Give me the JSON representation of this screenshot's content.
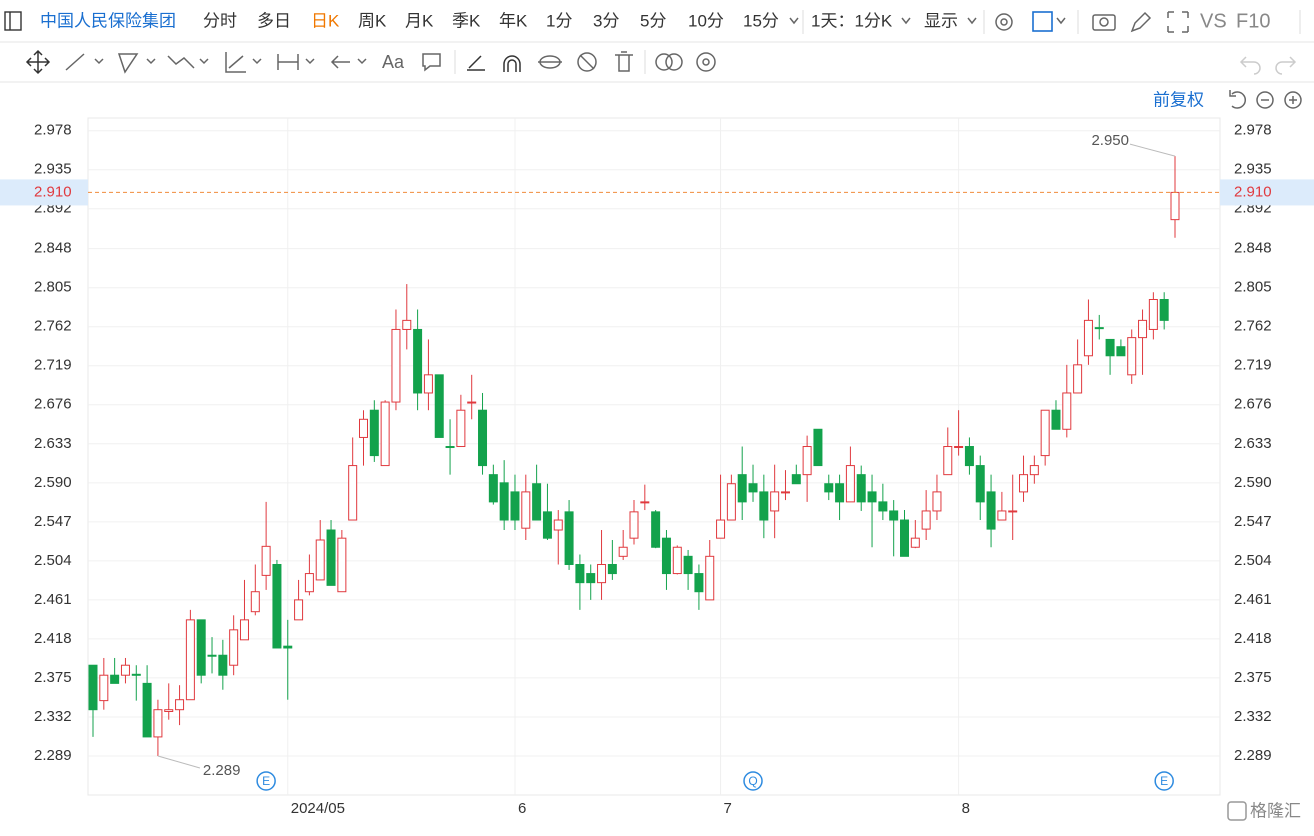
{
  "toolbar": {
    "stock_name": "中国人民保险集团",
    "periods": [
      "分时",
      "多日",
      "日K",
      "周K",
      "月K",
      "季K",
      "年K",
      "1分",
      "3分",
      "5分",
      "10分",
      "15分"
    ],
    "period_setting": "1天：1分K",
    "display": "显示",
    "vs": "VS",
    "f10": "F10",
    "text_tool": "Aa",
    "adjust": "前复权",
    "watermark": "格隆汇"
  },
  "chart_data": {
    "type": "candlestick",
    "categories": [
      null,
      null,
      null,
      null,
      null,
      null,
      null,
      null,
      null,
      null,
      null,
      null,
      null,
      null,
      null,
      null,
      null,
      null,
      "2024/05",
      null,
      null,
      null,
      null,
      null,
      null,
      null,
      null,
      null,
      null,
      null,
      null,
      null,
      null,
      null,
      null,
      null,
      null,
      null,
      null,
      "6",
      null,
      null,
      null,
      null,
      null,
      null,
      null,
      null,
      null,
      null,
      null,
      null,
      null,
      null,
      null,
      null,
      null,
      null,
      "7",
      null,
      null,
      null,
      null,
      null,
      null,
      null,
      null,
      null,
      null,
      null,
      null,
      null,
      null,
      null,
      null,
      null,
      null,
      null,
      null,
      null,
      "8",
      null,
      null,
      null,
      null,
      null,
      null,
      null,
      null,
      null,
      null,
      null,
      null,
      null,
      null,
      null,
      null,
      null,
      null,
      null,
      null
    ],
    "open": [
      2.389,
      2.35,
      2.378,
      2.378,
      2.379,
      2.369,
      2.31,
      2.338,
      2.34,
      2.351,
      2.439,
      2.4,
      2.4,
      2.389,
      2.417,
      2.448,
      2.488,
      2.5,
      2.41,
      2.439,
      2.47,
      2.483,
      2.538,
      2.47,
      2.549,
      2.64,
      2.67,
      2.609,
      2.679,
      2.759,
      2.759,
      2.689,
      2.709,
      2.63,
      2.63,
      2.678,
      2.67,
      2.599,
      2.59,
      2.58,
      2.54,
      2.589,
      2.558,
      2.538,
      2.558,
      2.5,
      2.49,
      2.48,
      2.5,
      2.509,
      2.529,
      2.568,
      2.558,
      2.529,
      2.49,
      2.509,
      2.49,
      2.461,
      2.529,
      2.549,
      2.599,
      2.589,
      2.58,
      2.559,
      2.579,
      2.599,
      2.599,
      2.649,
      2.589,
      2.589,
      2.569,
      2.599,
      2.58,
      2.569,
      2.559,
      2.549,
      2.519,
      2.539,
      2.559,
      2.599,
      2.629,
      2.63,
      2.609,
      2.58,
      2.549,
      2.558,
      2.58,
      2.599,
      2.62,
      2.67,
      2.649,
      2.689,
      2.73,
      2.761,
      2.748,
      2.74,
      2.709,
      2.75,
      2.759,
      2.792,
      2.88
    ],
    "high": [
      2.389,
      2.397,
      2.397,
      2.397,
      2.389,
      2.389,
      2.351,
      2.369,
      2.367,
      2.45,
      2.439,
      2.42,
      2.417,
      2.444,
      2.483,
      2.5,
      2.569,
      2.505,
      2.439,
      2.483,
      2.511,
      2.549,
      2.549,
      2.538,
      2.64,
      2.67,
      2.681,
      2.681,
      2.781,
      2.809,
      2.781,
      2.748,
      2.709,
      2.66,
      2.687,
      2.709,
      2.689,
      2.61,
      2.615,
      2.599,
      2.599,
      2.61,
      2.589,
      2.56,
      2.571,
      2.511,
      2.5,
      2.538,
      2.527,
      2.538,
      2.571,
      2.588,
      2.56,
      2.538,
      2.521,
      2.516,
      2.5,
      2.527,
      2.599,
      2.599,
      2.63,
      2.61,
      2.599,
      2.61,
      2.604,
      2.61,
      2.642,
      2.649,
      2.599,
      2.599,
      2.63,
      2.609,
      2.599,
      2.589,
      2.571,
      2.56,
      2.549,
      2.582,
      2.599,
      2.651,
      2.67,
      2.64,
      2.62,
      2.599,
      2.58,
      2.599,
      2.62,
      2.62,
      2.67,
      2.681,
      2.72,
      2.748,
      2.792,
      2.775,
      2.748,
      2.748,
      2.759,
      2.781,
      2.8,
      2.8,
      2.95
    ],
    "low": [
      2.31,
      2.34,
      2.369,
      2.369,
      2.35,
      2.31,
      2.289,
      2.329,
      2.323,
      2.351,
      2.369,
      2.38,
      2.362,
      2.378,
      2.417,
      2.444,
      2.472,
      2.408,
      2.351,
      2.439,
      2.466,
      2.483,
      2.477,
      2.47,
      2.549,
      2.609,
      2.613,
      2.609,
      2.67,
      2.737,
      2.67,
      2.67,
      2.64,
      2.599,
      2.63,
      2.66,
      2.599,
      2.566,
      2.538,
      2.538,
      2.527,
      2.549,
      2.527,
      2.5,
      2.494,
      2.45,
      2.461,
      2.461,
      2.483,
      2.505,
      2.522,
      2.56,
      2.518,
      2.472,
      2.489,
      2.472,
      2.45,
      2.461,
      2.529,
      2.549,
      2.549,
      2.569,
      2.529,
      2.529,
      2.571,
      2.589,
      2.569,
      2.609,
      2.571,
      2.549,
      2.569,
      2.559,
      2.519,
      2.549,
      2.509,
      2.509,
      2.518,
      2.527,
      2.549,
      2.599,
      2.62,
      2.599,
      2.549,
      2.519,
      2.549,
      2.527,
      2.569,
      2.589,
      2.609,
      2.649,
      2.64,
      2.689,
      2.72,
      2.748,
      2.709,
      2.73,
      2.699,
      2.709,
      2.748,
      2.759,
      2.86
    ],
    "close": [
      2.34,
      2.378,
      2.369,
      2.389,
      2.378,
      2.31,
      2.34,
      2.34,
      2.351,
      2.439,
      2.378,
      2.399,
      2.378,
      2.428,
      2.439,
      2.47,
      2.52,
      2.408,
      2.408,
      2.461,
      2.49,
      2.527,
      2.477,
      2.529,
      2.609,
      2.66,
      2.62,
      2.679,
      2.759,
      2.769,
      2.689,
      2.709,
      2.64,
      2.629,
      2.67,
      2.679,
      2.609,
      2.569,
      2.549,
      2.549,
      2.58,
      2.549,
      2.529,
      2.549,
      2.5,
      2.48,
      2.48,
      2.5,
      2.49,
      2.519,
      2.558,
      2.569,
      2.519,
      2.49,
      2.519,
      2.49,
      2.47,
      2.509,
      2.549,
      2.589,
      2.569,
      2.58,
      2.549,
      2.58,
      2.58,
      2.589,
      2.63,
      2.609,
      2.58,
      2.569,
      2.609,
      2.569,
      2.569,
      2.559,
      2.549,
      2.509,
      2.529,
      2.559,
      2.58,
      2.63,
      2.63,
      2.609,
      2.569,
      2.539,
      2.559,
      2.559,
      2.599,
      2.609,
      2.67,
      2.649,
      2.689,
      2.72,
      2.769,
      2.76,
      2.73,
      2.73,
      2.75,
      2.769,
      2.792,
      2.769,
      2.91
    ],
    "events": [
      null,
      null,
      null,
      null,
      null,
      null,
      null,
      null,
      null,
      null,
      null,
      null,
      null,
      null,
      null,
      null,
      "E",
      null,
      null,
      null,
      null,
      null,
      null,
      null,
      null,
      null,
      null,
      null,
      null,
      null,
      null,
      null,
      null,
      null,
      null,
      null,
      null,
      null,
      null,
      null,
      null,
      null,
      null,
      null,
      null,
      null,
      null,
      null,
      null,
      null,
      null,
      null,
      null,
      null,
      null,
      null,
      null,
      null,
      null,
      null,
      null,
      "Q",
      null,
      null,
      null,
      null,
      null,
      null,
      null,
      null,
      null,
      null,
      null,
      null,
      null,
      null,
      null,
      null,
      null,
      null,
      null,
      null,
      null,
      null,
      null,
      null,
      null,
      null,
      null,
      null,
      null,
      null,
      null,
      null,
      null,
      null,
      null,
      null,
      null,
      "E",
      null
    ],
    "up_color": "#e0393e",
    "down_color": "#13a24c",
    "ylim": [
      2.246,
      2.992
    ],
    "yticks": [
      2.978,
      2.935,
      2.892,
      2.848,
      2.805,
      2.762,
      2.719,
      2.676,
      2.633,
      {
        "value": 2.59,
        "label": "2.590"
      },
      2.547,
      2.504,
      2.461,
      2.418,
      2.375,
      2.332,
      2.289
    ],
    "price_line": {
      "value": 2.91,
      "label": "2.910"
    },
    "max_label": "2.950",
    "min_label": "2.289",
    "grid": true
  }
}
